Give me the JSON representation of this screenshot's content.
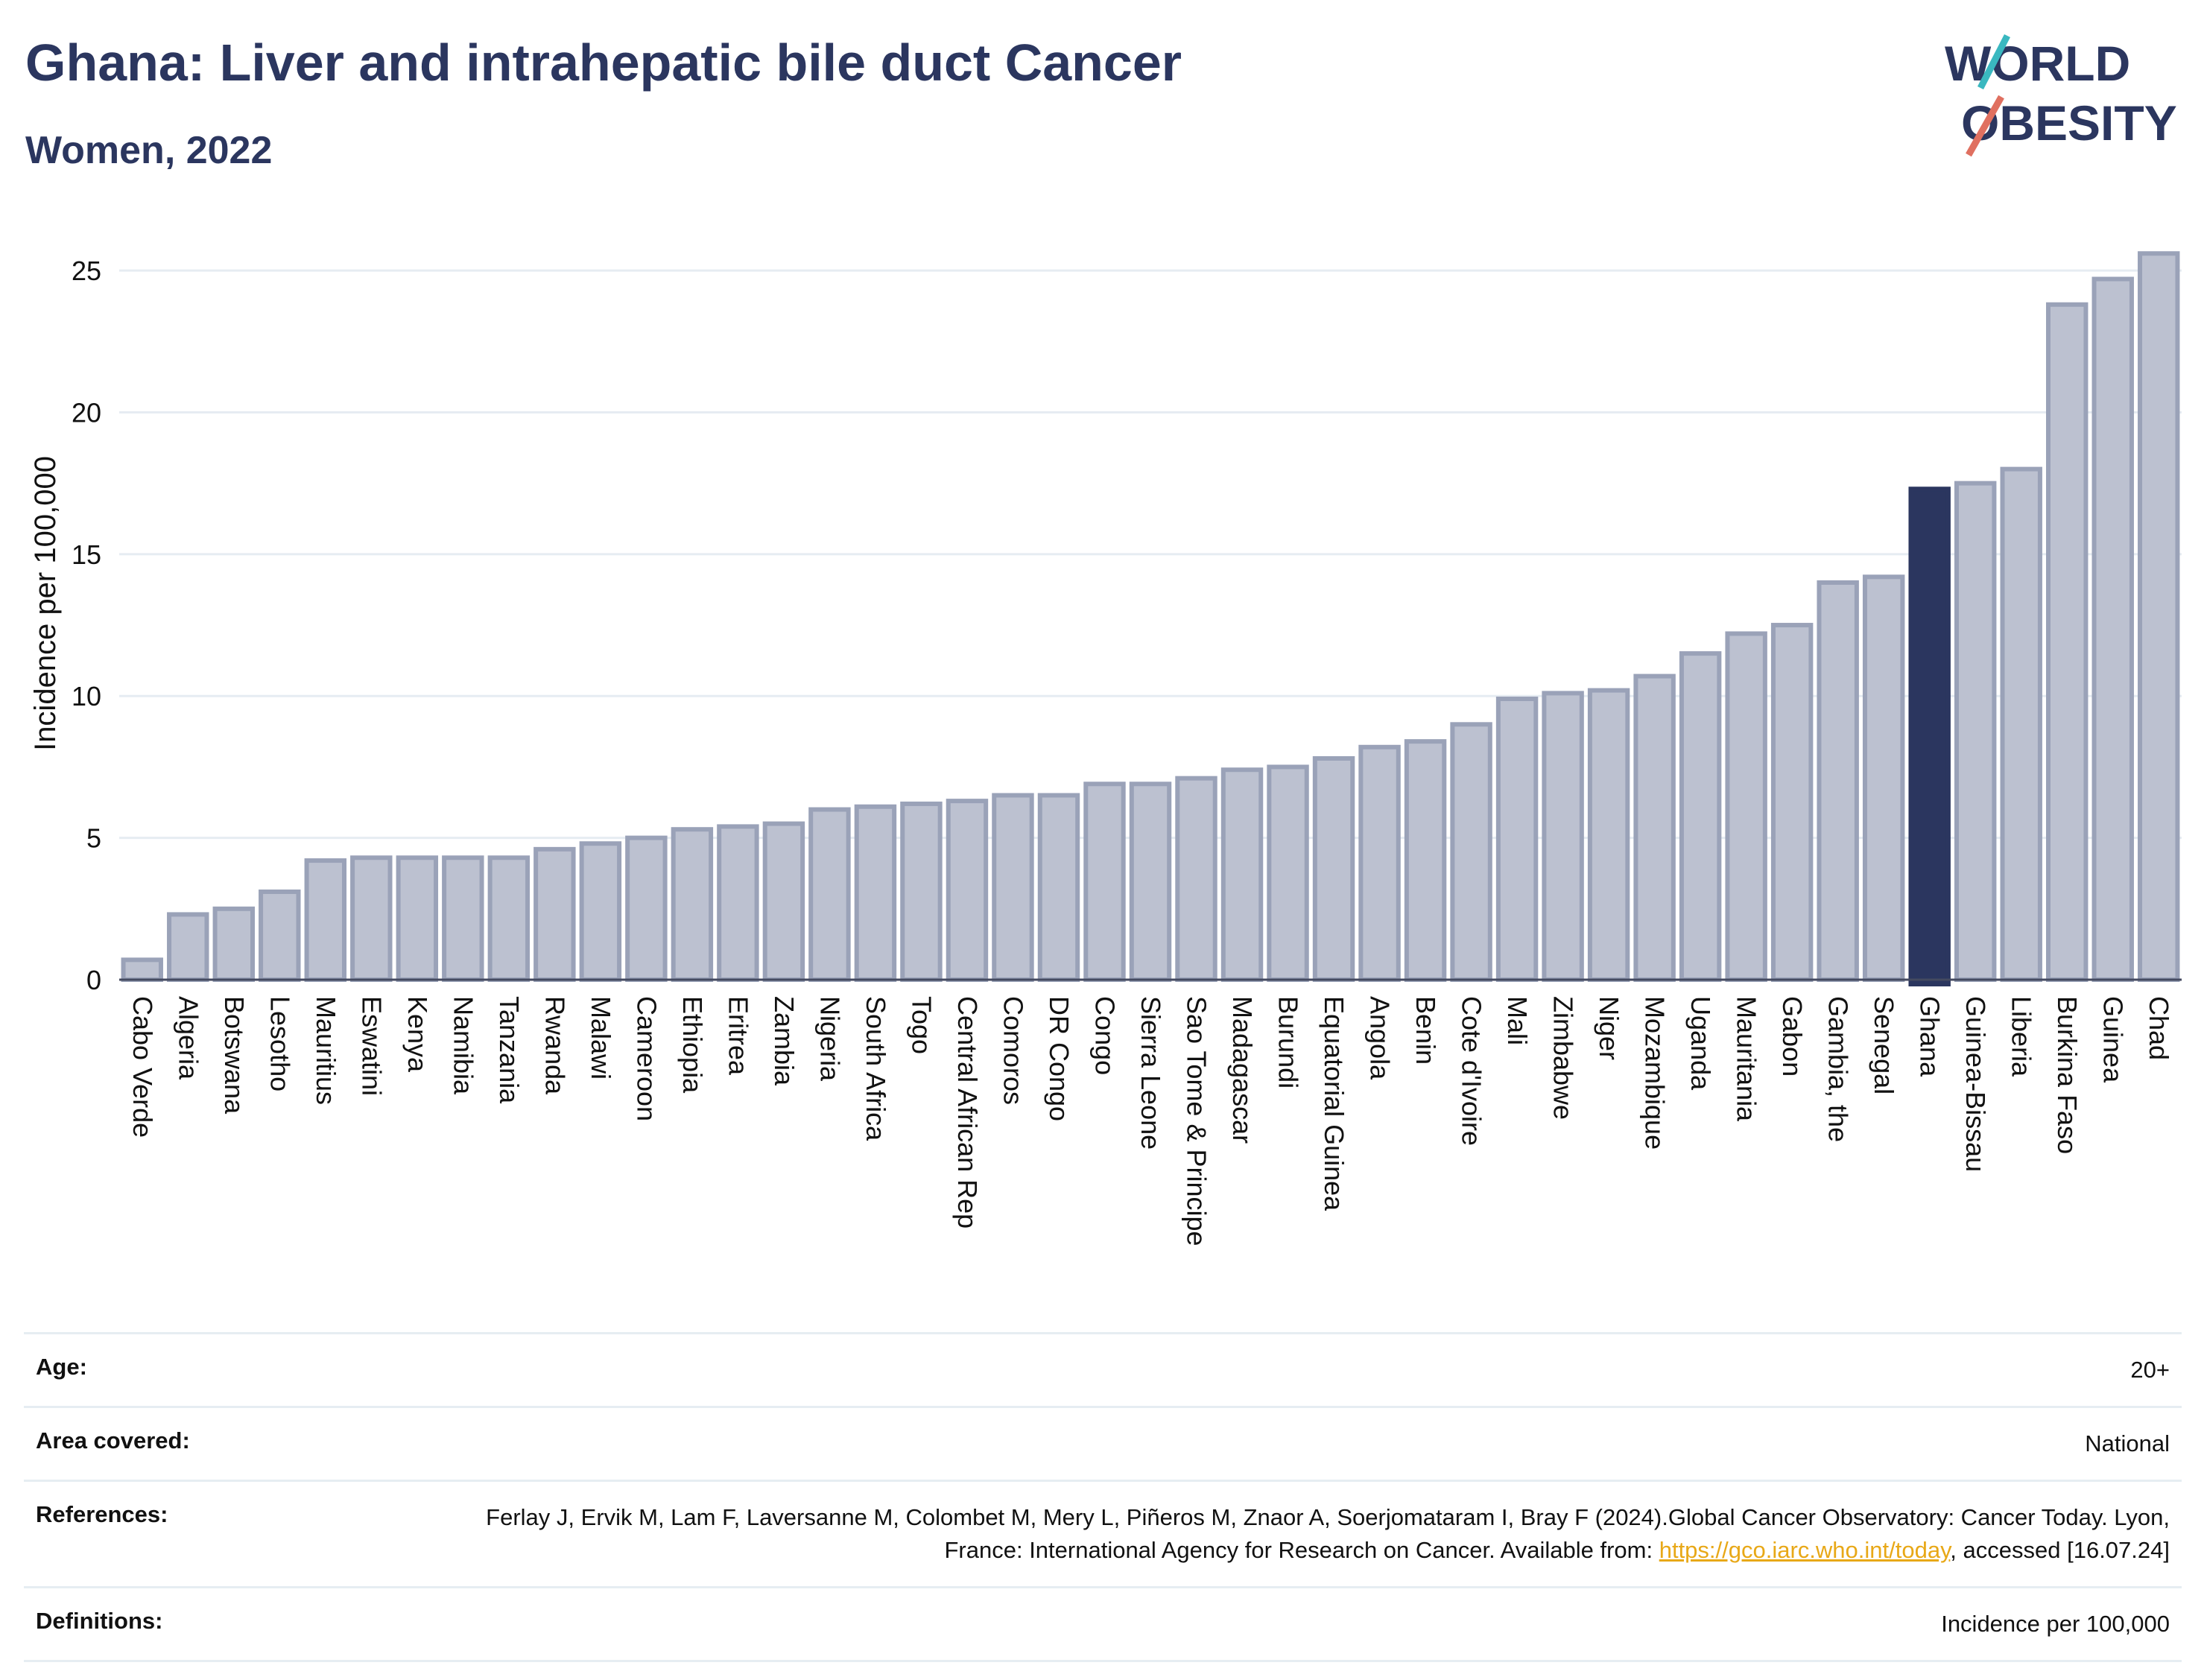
{
  "header": {
    "title": "Ghana: Liver and intrahepatic bile duct Cancer",
    "subtitle": "Women, 2022"
  },
  "logo": {
    "line1": "WORLD",
    "line2": "OBESITY"
  },
  "colors": {
    "bar": "#bcc1d0",
    "bar_border": "#9aa2b8",
    "highlight": "#2b365f",
    "title": "#2b365f",
    "grid": "#e6ecf2",
    "link": "#e8a817"
  },
  "chart_data": {
    "type": "bar",
    "ylabel": "Incidence per 100,000",
    "ylim": [
      0,
      26
    ],
    "yticks": [
      0,
      5,
      10,
      15,
      20,
      25
    ],
    "grid": true,
    "highlight": "Ghana",
    "categories": [
      "Cabo Verde",
      "Algeria",
      "Botswana",
      "Lesotho",
      "Mauritius",
      "Eswatini",
      "Kenya",
      "Namibia",
      "Tanzania",
      "Rwanda",
      "Malawi",
      "Cameroon",
      "Ethiopia",
      "Eritrea",
      "Zambia",
      "Nigeria",
      "South Africa",
      "Togo",
      "Central African Rep",
      "Comoros",
      "DR Congo",
      "Congo",
      "Sierra Leone",
      "Sao Tome & Principe",
      "Madagascar",
      "Burundi",
      "Equatorial Guinea",
      "Angola",
      "Benin",
      "Cote d'Ivoire",
      "Mali",
      "Zimbabwe",
      "Niger",
      "Mozambique",
      "Uganda",
      "Mauritania",
      "Gabon",
      "Gambia, the",
      "Senegal",
      "Ghana",
      "Guinea-Bissau",
      "Liberia",
      "Burkina Faso",
      "Guinea",
      "Chad"
    ],
    "values": [
      0.7,
      2.3,
      2.5,
      3.1,
      4.2,
      4.3,
      4.3,
      4.3,
      4.3,
      4.6,
      4.8,
      5.0,
      5.3,
      5.4,
      5.5,
      6.0,
      6.1,
      6.2,
      6.3,
      6.5,
      6.5,
      6.9,
      6.9,
      7.1,
      7.4,
      7.5,
      7.8,
      8.2,
      8.4,
      9.0,
      9.9,
      10.1,
      10.2,
      10.7,
      11.5,
      12.2,
      12.5,
      14.0,
      14.2,
      17.3,
      17.5,
      18.0,
      23.8,
      24.7,
      25.6
    ]
  },
  "info": {
    "age_label": "Age:",
    "age_value": "20+",
    "area_label": "Area covered:",
    "area_value": "National",
    "references_label": "References:",
    "references_text": "Ferlay J, Ervik M, Lam F, Laversanne M, Colombet M, Mery L, Piñeros M, Znaor A, Soerjomataram I, Bray F (2024).Global Cancer Observatory: Cancer Today. Lyon, France: International Agency for Research on Cancer. Available from: ",
    "references_link": "https://gco.iarc.who.int/today",
    "references_suffix": ", accessed [16.07.24]",
    "definitions_label": "Definitions:",
    "definitions_value": "Incidence per 100,000"
  }
}
